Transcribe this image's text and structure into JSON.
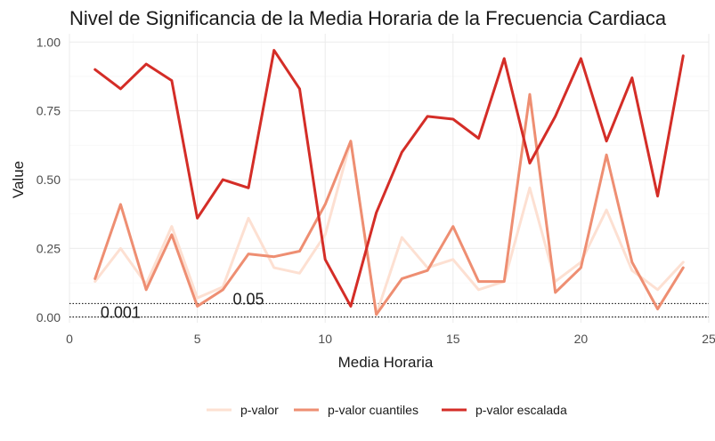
{
  "chart_data": {
    "type": "line",
    "title": "Nivel de Significancia de la Media Horaria de la Frecuencia Cardiaca",
    "xlabel": "Media Horaria",
    "ylabel": "Value",
    "xlim": [
      0,
      25
    ],
    "ylim": [
      -0.02,
      1.03
    ],
    "xticks": [
      0,
      5,
      10,
      15,
      20,
      25
    ],
    "yticks": [
      0.0,
      0.25,
      0.5,
      0.75,
      1.0
    ],
    "xtick_labels": [
      "0",
      "5",
      "10",
      "15",
      "20",
      "25"
    ],
    "ytick_labels": [
      "0.00",
      "0.25",
      "0.50",
      "0.75",
      "1.00"
    ],
    "x": [
      1,
      2,
      3,
      4,
      5,
      6,
      7,
      8,
      9,
      10,
      11,
      12,
      13,
      14,
      15,
      16,
      17,
      18,
      19,
      20,
      21,
      22,
      23,
      24
    ],
    "series": [
      {
        "name": "p-valor",
        "color": "#fde0d2",
        "values": [
          0.13,
          0.25,
          0.12,
          0.33,
          0.07,
          0.11,
          0.36,
          0.18,
          0.16,
          0.3,
          0.64,
          0.01,
          0.29,
          0.18,
          0.21,
          0.1,
          0.13,
          0.47,
          0.13,
          0.2,
          0.39,
          0.17,
          0.1,
          0.2
        ]
      },
      {
        "name": "p-valor cuantiles",
        "color": "#ee8e72",
        "values": [
          0.14,
          0.41,
          0.1,
          0.3,
          0.04,
          0.1,
          0.23,
          0.22,
          0.24,
          0.41,
          0.64,
          0.01,
          0.14,
          0.17,
          0.33,
          0.13,
          0.13,
          0.81,
          0.09,
          0.18,
          0.59,
          0.2,
          0.03,
          0.18
        ]
      },
      {
        "name": "p-valor escalada",
        "color": "#d42d27",
        "values": [
          0.9,
          0.83,
          0.92,
          0.86,
          0.36,
          0.5,
          0.47,
          0.97,
          0.83,
          0.21,
          0.04,
          0.38,
          0.6,
          0.73,
          0.72,
          0.65,
          0.94,
          0.56,
          0.73,
          0.94,
          0.64,
          0.87,
          0.44,
          0.95
        ]
      }
    ],
    "reference_lines": [
      {
        "y": 0.05,
        "label": "0.05",
        "label_x": 7,
        "style": "dotted"
      },
      {
        "y": 0.001,
        "label": "0.001",
        "label_x": 2,
        "style": "dotted"
      }
    ],
    "grid": true,
    "legend_position": "bottom"
  }
}
